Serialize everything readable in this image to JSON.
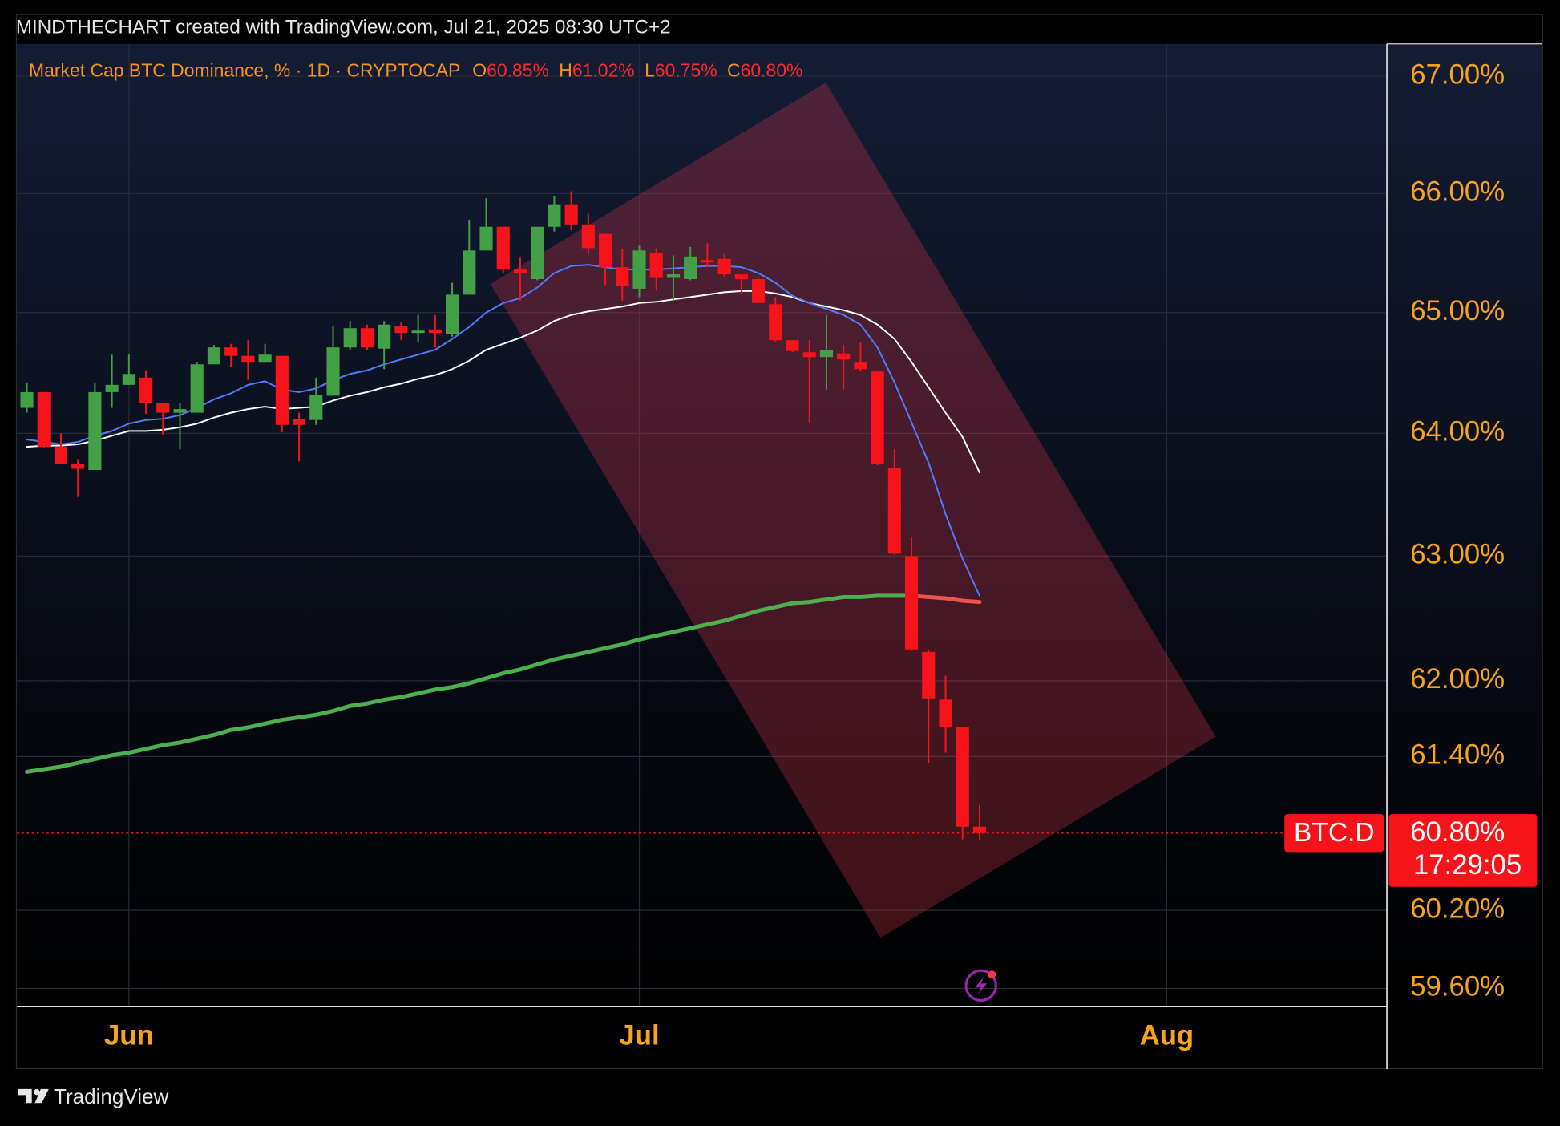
{
  "header": "MINDTHECHART created with TradingView.com, Jul 21, 2025 08:30 UTC+2",
  "footer": "TradingView",
  "chart_data": {
    "type": "candlestick",
    "legend": {
      "title": "Market Cap BTC Dominance, % · 1D · CRYPTOCAP",
      "ohlc": [
        {
          "key": "O",
          "label": "60.85%"
        },
        {
          "key": "H",
          "label": "61.02%"
        },
        {
          "key": "L",
          "label": "60.75%"
        },
        {
          "key": "C",
          "label": "60.80%"
        }
      ]
    },
    "categories": [
      null,
      null,
      null,
      null,
      null,
      null,
      "Jun",
      null,
      null,
      null,
      null,
      null,
      null,
      null,
      null,
      null,
      null,
      null,
      null,
      null,
      null,
      null,
      null,
      null,
      null,
      null,
      null,
      null,
      null,
      null,
      null,
      null,
      null,
      null,
      null,
      null,
      "Jul",
      null,
      null,
      null,
      null,
      null,
      null,
      null,
      null,
      null,
      null,
      null,
      null,
      null,
      null,
      null,
      null,
      null,
      null,
      null,
      null,
      null,
      null,
      null,
      null,
      null,
      null,
      null,
      null,
      null,
      null,
      "Aug"
    ],
    "open": [
      64.21,
      64.34,
      63.89,
      63.75,
      63.7,
      64.34,
      64.4,
      64.46,
      64.25,
      64.17,
      64.17,
      64.57,
      64.71,
      64.64,
      64.59,
      64.64,
      64.12,
      64.11,
      64.31,
      64.71,
      64.87,
      64.7,
      64.89,
      64.83,
      64.86,
      64.82,
      65.15,
      65.52,
      65.72,
      65.36,
      65.28,
      65.72,
      65.91,
      65.74,
      65.66,
      65.38,
      65.2,
      65.5,
      65.29,
      65.28,
      65.44,
      65.45,
      65.32,
      65.28,
      65.07,
      64.77,
      64.67,
      64.63,
      64.66,
      64.59,
      64.51,
      63.72,
      63.0,
      62.23,
      61.85,
      61.63,
      60.85,
      null,
      null,
      null,
      null,
      null,
      null,
      null,
      null,
      null,
      null,
      null
    ],
    "high": [
      64.42,
      64.34,
      64.0,
      63.79,
      64.42,
      64.65,
      64.65,
      64.52,
      64.25,
      64.25,
      64.59,
      64.73,
      64.74,
      64.77,
      64.74,
      64.64,
      64.17,
      64.46,
      64.89,
      64.93,
      64.9,
      64.93,
      64.92,
      64.98,
      64.98,
      65.25,
      65.78,
      65.96,
      65.72,
      65.46,
      65.72,
      65.98,
      66.02,
      65.83,
      65.66,
      65.53,
      65.56,
      65.54,
      65.48,
      65.55,
      65.58,
      65.49,
      65.32,
      65.29,
      65.13,
      64.77,
      64.77,
      64.98,
      64.73,
      64.75,
      64.51,
      63.87,
      63.15,
      62.25,
      62.04,
      61.63,
      61.02,
      null,
      null,
      null,
      null,
      null,
      null,
      null,
      null,
      null,
      null,
      null
    ],
    "low": [
      64.17,
      63.88,
      63.75,
      63.48,
      63.7,
      64.21,
      64.4,
      64.16,
      63.99,
      63.87,
      64.17,
      64.57,
      64.55,
      64.44,
      64.59,
      64.01,
      63.77,
      64.07,
      64.31,
      64.69,
      64.69,
      64.53,
      64.77,
      64.75,
      64.71,
      64.8,
      65.15,
      65.52,
      65.33,
      65.1,
      65.27,
      65.68,
      65.69,
      65.49,
      65.23,
      65.1,
      65.13,
      65.19,
      65.1,
      65.27,
      65.38,
      65.3,
      65.16,
      65.08,
      64.76,
      64.67,
      64.09,
      64.36,
      64.36,
      64.51,
      63.74,
      63.01,
      62.24,
      61.35,
      61.43,
      60.75,
      60.75,
      null,
      null,
      null,
      null,
      null,
      null,
      null,
      null,
      null,
      null,
      null
    ],
    "close": [
      64.34,
      63.89,
      63.75,
      63.71,
      64.34,
      64.4,
      64.49,
      64.25,
      64.17,
      64.2,
      64.57,
      64.71,
      64.64,
      64.59,
      64.65,
      64.07,
      64.07,
      64.32,
      64.71,
      64.87,
      64.71,
      64.9,
      64.83,
      64.85,
      64.83,
      65.15,
      65.52,
      65.72,
      65.36,
      65.33,
      65.72,
      65.91,
      65.74,
      65.54,
      65.38,
      65.22,
      65.52,
      65.29,
      65.32,
      65.47,
      65.42,
      65.32,
      65.28,
      65.08,
      64.77,
      64.68,
      64.63,
      64.69,
      64.61,
      64.53,
      63.75,
      63.02,
      62.25,
      61.86,
      61.63,
      60.85,
      60.8,
      null,
      null,
      null,
      null,
      null,
      null,
      null,
      null,
      null,
      null,
      null
    ],
    "up_color": "#43a047",
    "down_color": "#f7131a",
    "lines": [
      {
        "color": "#ffffff",
        "width": 1.6,
        "values": [
          63.89,
          63.9,
          63.9,
          63.91,
          63.94,
          63.98,
          64.02,
          64.02,
          64.03,
          64.05,
          64.08,
          64.13,
          64.17,
          64.2,
          64.22,
          64.2,
          64.21,
          64.22,
          64.27,
          64.31,
          64.34,
          64.38,
          64.41,
          64.45,
          64.48,
          64.53,
          64.6,
          64.69,
          64.74,
          64.79,
          64.85,
          64.93,
          64.98,
          65.01,
          65.03,
          65.05,
          65.08,
          65.09,
          65.11,
          65.13,
          65.15,
          65.17,
          65.18,
          65.18,
          65.16,
          65.13,
          65.08,
          65.05,
          65.02,
          64.98,
          64.9,
          64.78,
          64.59,
          64.38,
          64.17,
          63.97,
          63.68,
          null,
          null,
          null,
          null,
          null,
          null,
          null,
          null,
          null,
          null,
          null
        ]
      },
      {
        "color": "#4f7cff",
        "width": 1.6,
        "values": [
          63.95,
          63.93,
          63.91,
          63.93,
          63.98,
          64.02,
          64.08,
          64.11,
          64.12,
          64.15,
          64.21,
          64.28,
          64.33,
          64.4,
          64.43,
          64.36,
          64.34,
          64.37,
          64.44,
          64.49,
          64.52,
          64.57,
          64.61,
          64.65,
          64.69,
          64.78,
          64.88,
          65.0,
          65.08,
          65.12,
          65.21,
          65.33,
          65.39,
          65.4,
          65.38,
          65.36,
          65.36,
          65.36,
          65.37,
          65.38,
          65.39,
          65.39,
          65.38,
          65.33,
          65.25,
          65.14,
          65.08,
          65.03,
          64.98,
          64.9,
          64.71,
          64.42,
          64.09,
          63.76,
          63.34,
          62.98,
          62.68,
          null,
          null,
          null,
          null,
          null,
          null,
          null,
          null,
          null,
          null,
          null
        ]
      },
      {
        "color": "#4caf50",
        "falling_color": "#ef5350",
        "width": 4,
        "values": [
          61.28,
          61.3,
          61.32,
          61.35,
          61.38,
          61.41,
          61.43,
          61.46,
          61.49,
          61.51,
          61.54,
          61.57,
          61.61,
          61.63,
          61.66,
          61.69,
          61.71,
          61.73,
          61.76,
          61.8,
          61.82,
          61.85,
          61.87,
          61.9,
          61.93,
          61.95,
          61.98,
          62.02,
          62.06,
          62.09,
          62.13,
          62.17,
          62.2,
          62.23,
          62.26,
          62.29,
          62.33,
          62.36,
          62.39,
          62.42,
          62.45,
          62.48,
          62.52,
          62.56,
          62.59,
          62.62,
          62.63,
          62.65,
          62.67,
          62.67,
          62.68,
          62.68,
          62.68,
          62.67,
          62.66,
          62.64,
          62.63,
          null,
          null,
          null,
          null,
          null,
          null,
          null,
          null,
          null,
          null,
          null
        ]
      }
    ],
    "last_price": {
      "symbol": "BTC.D",
      "label": "60.80%",
      "countdown": "17:29:05"
    },
    "log_scale": true,
    "grid": true,
    "ylim": [
      59.47,
      67.28
    ],
    "yticks": [
      {
        "value": 59.6,
        "label": "59.60%"
      },
      {
        "value": 60.2,
        "label": "60.20%"
      },
      {
        "value": 61.4,
        "label": "61.40%"
      },
      {
        "value": 62,
        "label": "62.00%"
      },
      {
        "value": 63,
        "label": "63.00%"
      },
      {
        "value": 64,
        "label": "64.00%"
      },
      {
        "value": 65,
        "label": "65.00%"
      },
      {
        "value": 66,
        "label": "66.00%"
      },
      {
        "value": 67,
        "label": "67.00%"
      }
    ]
  }
}
